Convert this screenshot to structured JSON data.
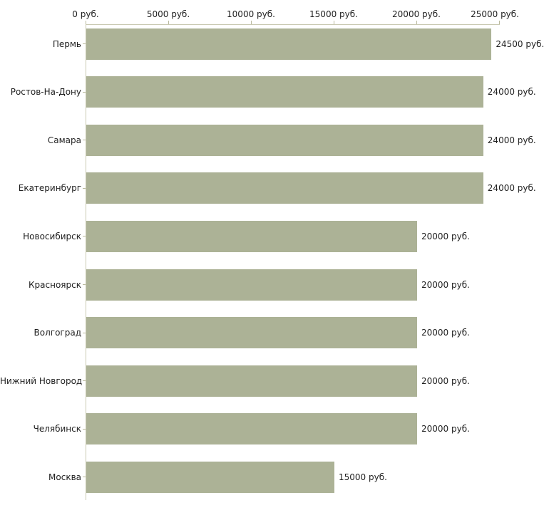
{
  "chart_data": {
    "type": "bar",
    "orientation": "horizontal",
    "unit": "руб.",
    "categories": [
      "Пермь",
      "Ростов-На-Дону",
      "Самара",
      "Екатеринбург",
      "Новосибирск",
      "Красноярск",
      "Волгоград",
      "Нижний Новгород",
      "Челябинск",
      "Москва"
    ],
    "values": [
      24500,
      24000,
      24000,
      24000,
      20000,
      20000,
      20000,
      20000,
      20000,
      15000
    ],
    "value_labels": [
      "24500 руб.",
      "24000 руб.",
      "24000 руб.",
      "24000 руб.",
      "20000 руб.",
      "20000 руб.",
      "20000 руб.",
      "20000 руб.",
      "20000 руб.",
      "15000 руб."
    ],
    "xlabel": "",
    "ylabel": "",
    "title": "",
    "x_axis": {
      "position": "top",
      "min": 0,
      "max": 25000,
      "ticks": [
        0,
        5000,
        10000,
        15000,
        20000,
        25000
      ],
      "tick_labels": [
        "0 руб.",
        "5000 руб.",
        "10000 руб.",
        "15000 руб.",
        "20000 руб.",
        "25000 руб."
      ]
    },
    "legend": null,
    "grid": false,
    "colors": {
      "bar_fill": "#acb296",
      "axis_line": "#c9c9b1",
      "tick_mark": "#b9b99d",
      "text": "#1f1f1f",
      "background": "#ffffff"
    }
  }
}
